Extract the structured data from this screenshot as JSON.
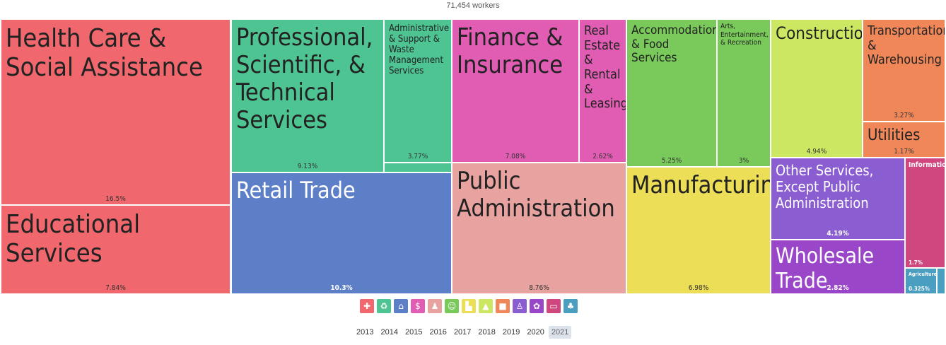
{
  "header": {
    "total_label": "71,454 workers"
  },
  "chart_data": {
    "type": "treemap",
    "total": "71,454 workers",
    "tiles": [
      {
        "name": "Health Care & Social Assistance",
        "share_percent": 16.5,
        "value_label": "16.5%",
        "color": "#f0686d"
      },
      {
        "name": "Educational Services",
        "share_percent": 7.84,
        "value_label": "7.84%",
        "color": "#f0686d"
      },
      {
        "name": "Professional, Scientific, & Technical Services",
        "share_percent": 9.13,
        "value_label": "9.13%",
        "color": "#4fc493"
      },
      {
        "name": "Administrative & Support & Waste Management Services",
        "share_percent": 3.77,
        "value_label": "3.77%",
        "color": "#4fc493"
      },
      {
        "name": "",
        "share_percent": null,
        "value_label": "",
        "color": "#4fc493"
      },
      {
        "name": "Retail Trade",
        "share_percent": 10.3,
        "value_label": "10.3%",
        "color": "#5d7fc7",
        "light": true
      },
      {
        "name": "Finance & Insurance",
        "share_percent": 7.08,
        "value_label": "7.08%",
        "color": "#e15db3"
      },
      {
        "name": "Real Estate & Rental & Leasing",
        "share_percent": 2.62,
        "value_label": "2.62%",
        "color": "#e15db3"
      },
      {
        "name": "Public Administration",
        "share_percent": 8.76,
        "value_label": "8.76%",
        "color": "#e8a3a0"
      },
      {
        "name": "Accommodation & Food Services",
        "share_percent": 5.25,
        "value_label": "5.25%",
        "color": "#7ac95b"
      },
      {
        "name": "Arts, Entertainment, & Recreation",
        "share_percent": 3,
        "value_label": "3%",
        "color": "#7ac95b"
      },
      {
        "name": "Manufacturing",
        "share_percent": 6.98,
        "value_label": "6.98%",
        "color": "#ecde57"
      },
      {
        "name": "Construction",
        "share_percent": 4.94,
        "value_label": "4.94%",
        "color": "#cce762"
      },
      {
        "name": "Transportation & Warehousing",
        "share_percent": 3.27,
        "value_label": "3.27%",
        "color": "#f08758"
      },
      {
        "name": "Utilities",
        "share_percent": 1.17,
        "value_label": "1.17%",
        "color": "#f08758"
      },
      {
        "name": "Other Services, Except Public Administration",
        "share_percent": 4.19,
        "value_label": "4.19%",
        "color": "#8a5dd1",
        "light": true
      },
      {
        "name": "Wholesale Trade",
        "share_percent": 2.82,
        "value_label": "2.82%",
        "color": "#9a46c8",
        "light": true
      },
      {
        "name": "Information",
        "share_percent": 1.7,
        "value_label": "1.7%",
        "color": "#d0467e",
        "light": true
      },
      {
        "name": "Agriculture,...",
        "share_percent": 0.325,
        "value_label": "0.325%",
        "color": "#4a9ec0",
        "light": true
      },
      {
        "name": "",
        "share_percent": null,
        "value_label": "",
        "color": "#4a9ec0"
      }
    ]
  },
  "legend_icons": [
    {
      "icon": "health-cross-icon",
      "glyph": "✚",
      "color": "#f0686d"
    },
    {
      "icon": "recycle-icon",
      "glyph": "♻",
      "color": "#4fc493"
    },
    {
      "icon": "storefront-icon",
      "glyph": "⌂",
      "color": "#5d7fc7"
    },
    {
      "icon": "finance-house-icon",
      "glyph": "$",
      "color": "#e15db3"
    },
    {
      "icon": "people-icon",
      "glyph": "♟",
      "color": "#e8a3a0"
    },
    {
      "icon": "theater-masks-icon",
      "glyph": "☺",
      "color": "#7ac95b"
    },
    {
      "icon": "factory-icon",
      "glyph": "▙",
      "color": "#ecde57"
    },
    {
      "icon": "cone-icon",
      "glyph": "▲",
      "color": "#cce762"
    },
    {
      "icon": "truck-icon",
      "glyph": "■",
      "color": "#f08758"
    },
    {
      "icon": "person-icon",
      "glyph": "♙",
      "color": "#8a5dd1"
    },
    {
      "icon": "handshake-icon",
      "glyph": "✿",
      "color": "#9a46c8"
    },
    {
      "icon": "computer-icon",
      "glyph": "▭",
      "color": "#d0467e"
    },
    {
      "icon": "wheat-icon",
      "glyph": "♣",
      "color": "#4a9ec0"
    }
  ],
  "years": {
    "items": [
      "2013",
      "2014",
      "2015",
      "2016",
      "2017",
      "2018",
      "2019",
      "2020",
      "2021"
    ],
    "selected": "2021"
  }
}
